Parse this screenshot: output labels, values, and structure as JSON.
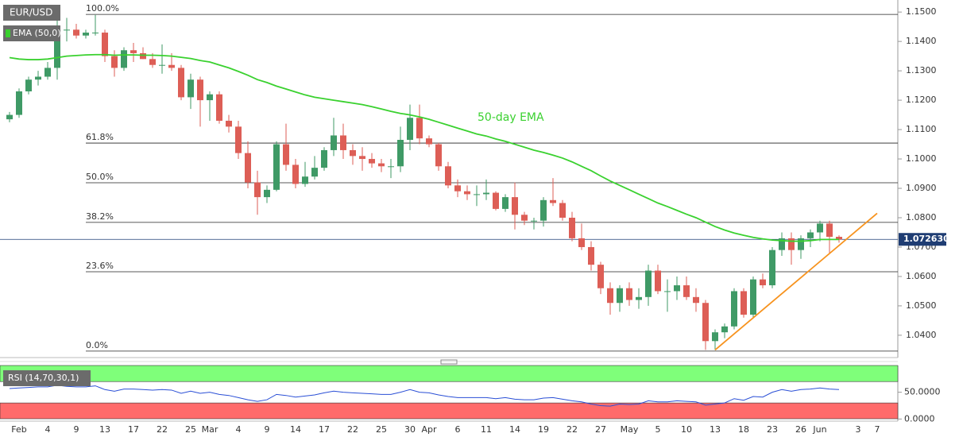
{
  "chart_data": {
    "type": "candlestick",
    "title": "EUR/USD",
    "categories": [
      null,
      "Feb",
      null,
      null,
      "4",
      null,
      null,
      "9",
      null,
      null,
      "13",
      null,
      null,
      "17",
      null,
      null,
      "22",
      null,
      null,
      "25",
      null,
      "Mar",
      null,
      null,
      "4",
      null,
      null,
      "9",
      null,
      null,
      "14",
      null,
      null,
      "17",
      null,
      null,
      "22",
      null,
      null,
      "25",
      null,
      null,
      "30",
      null,
      "Apr",
      null,
      null,
      "6",
      null,
      null,
      "11",
      null,
      null,
      "14",
      null,
      null,
      "19",
      null,
      null,
      "22",
      null,
      null,
      "27",
      null,
      null,
      "May",
      null,
      null,
      "5",
      null,
      null,
      "10",
      null,
      null,
      "13",
      null,
      null,
      "18",
      null,
      null,
      "23",
      null,
      null,
      "26",
      null,
      "Jun",
      null,
      null,
      null,
      "3",
      null,
      "7"
    ],
    "open": [
      1.1135,
      1.115,
      1.123,
      1.127,
      1.128,
      1.131,
      1.144,
      1.144,
      1.142,
      1.143,
      1.143,
      1.135,
      1.131,
      1.137,
      1.136,
      1.134,
      1.132,
      1.132,
      1.131,
      1.121,
      1.127,
      1.12,
      1.122,
      1.113,
      1.111,
      1.102,
      1.092,
      1.087,
      1.0895,
      1.105,
      1.098,
      1.0915,
      1.094,
      1.097,
      1.103,
      1.108,
      1.103,
      1.101,
      1.1,
      1.0985,
      1.0975,
      1.0975,
      1.1065,
      1.114,
      1.107,
      1.105,
      1.0975,
      1.091,
      1.089,
      1.088,
      1.088,
      1.0885,
      1.083,
      1.087,
      1.081,
      1.079,
      1.079,
      1.086,
      1.085,
      1.08,
      1.073,
      1.07,
      1.064,
      1.056,
      1.051,
      1.056,
      1.052,
      1.053,
      1.062,
      1.055,
      1.055,
      1.057,
      1.053,
      1.051,
      1.038,
      1.041,
      1.043,
      1.055,
      1.047,
      1.059,
      1.057,
      1.069,
      1.073,
      1.069,
      1.073,
      1.075,
      1.078,
      1.0735,
      null,
      null,
      null,
      null
    ],
    "high": [
      1.116,
      1.124,
      1.128,
      1.13,
      1.133,
      1.148,
      1.148,
      1.146,
      1.144,
      1.149,
      1.144,
      1.137,
      1.138,
      1.1395,
      1.138,
      1.136,
      1.139,
      1.136,
      1.132,
      1.129,
      1.128,
      1.123,
      1.123,
      1.115,
      1.113,
      1.106,
      1.096,
      1.091,
      1.106,
      1.112,
      1.1,
      1.099,
      1.101,
      1.104,
      1.114,
      1.112,
      1.105,
      1.104,
      1.102,
      1.1,
      1.1,
      1.111,
      1.1185,
      1.1185,
      1.108,
      1.1055,
      1.099,
      1.093,
      1.091,
      1.091,
      1.093,
      1.089,
      1.088,
      1.092,
      1.082,
      1.08,
      1.087,
      1.0935,
      1.086,
      1.082,
      1.078,
      1.072,
      1.065,
      1.058,
      1.057,
      1.058,
      1.056,
      1.064,
      1.064,
      1.059,
      1.06,
      1.06,
      1.056,
      1.052,
      1.042,
      1.044,
      1.056,
      1.056,
      1.06,
      1.061,
      1.07,
      1.075,
      1.075,
      1.074,
      1.076,
      1.079,
      1.079,
      1.074,
      null,
      null,
      null,
      null
    ],
    "low": [
      1.1125,
      1.114,
      1.122,
      1.125,
      1.127,
      1.127,
      1.14,
      1.141,
      1.141,
      1.142,
      1.133,
      1.128,
      1.13,
      1.133,
      1.134,
      1.131,
      1.129,
      1.13,
      1.12,
      1.117,
      1.111,
      1.113,
      1.112,
      1.109,
      1.1,
      1.09,
      1.081,
      1.085,
      1.089,
      1.096,
      1.09,
      1.0905,
      1.093,
      1.096,
      1.101,
      1.1,
      1.098,
      1.096,
      1.097,
      1.0955,
      1.0935,
      1.0955,
      1.103,
      1.105,
      1.104,
      1.096,
      1.09,
      1.087,
      1.086,
      1.084,
      1.086,
      1.0825,
      1.082,
      1.076,
      1.0775,
      1.076,
      1.077,
      1.084,
      1.079,
      1.072,
      1.069,
      1.062,
      1.054,
      1.047,
      1.048,
      1.05,
      1.049,
      1.05,
      1.054,
      1.048,
      1.052,
      1.052,
      1.048,
      1.035,
      1.035,
      1.039,
      1.042,
      1.046,
      1.046,
      1.056,
      1.056,
      1.067,
      1.064,
      1.066,
      1.07,
      1.072,
      1.068,
      1.0715,
      null,
      null,
      null,
      null
    ],
    "close": [
      1.115,
      1.123,
      1.127,
      1.128,
      1.131,
      1.144,
      1.144,
      1.142,
      1.143,
      1.143,
      1.135,
      1.131,
      1.137,
      1.136,
      1.134,
      1.132,
      1.132,
      1.131,
      1.121,
      1.127,
      1.12,
      1.122,
      1.113,
      1.111,
      1.102,
      1.092,
      1.087,
      1.0895,
      1.105,
      1.098,
      1.0915,
      1.094,
      1.097,
      1.103,
      1.108,
      1.103,
      1.101,
      1.1,
      1.0985,
      1.0975,
      1.0975,
      1.1065,
      1.114,
      1.107,
      1.105,
      1.0975,
      1.091,
      1.089,
      1.088,
      1.088,
      1.0885,
      1.083,
      1.087,
      1.081,
      1.079,
      1.079,
      1.086,
      1.085,
      1.08,
      1.073,
      1.07,
      1.064,
      1.056,
      1.051,
      1.056,
      1.052,
      1.053,
      1.062,
      1.055,
      1.055,
      1.057,
      1.053,
      1.051,
      1.038,
      1.041,
      1.043,
      1.055,
      1.047,
      1.059,
      1.057,
      1.069,
      1.073,
      1.069,
      1.073,
      1.075,
      1.078,
      1.0735,
      1.0726,
      null,
      null,
      null,
      null
    ],
    "up_color": "#3f9a66",
    "down_color": "#dd5e56",
    "ylim": [
      1.0324,
      1.1541
    ],
    "yticks": [
      {
        "value": 1.04,
        "label": "1.0400"
      },
      {
        "value": 1.05,
        "label": "1.0500"
      },
      {
        "value": 1.06,
        "label": "1.0600"
      },
      {
        "value": 1.07,
        "label": "1.0700"
      },
      {
        "value": 1.08,
        "label": "1.0800"
      },
      {
        "value": 1.09,
        "label": "1.0900"
      },
      {
        "value": 1.1,
        "label": "1.1000"
      },
      {
        "value": 1.11,
        "label": "1.1100"
      },
      {
        "value": 1.12,
        "label": "1.1200"
      },
      {
        "value": 1.13,
        "label": "1.1300"
      },
      {
        "value": 1.14,
        "label": "1.1400"
      },
      {
        "value": 1.15,
        "label": "1.1500"
      }
    ],
    "ema": {
      "name": "EMA (50,0)",
      "annotation": "50-day EMA",
      "color": "#3ad12f",
      "values": [
        1.1345,
        1.134,
        1.1338,
        1.1338,
        1.134,
        1.1345,
        1.135,
        1.1352,
        1.1354,
        1.1355,
        1.1355,
        1.1353,
        1.1354,
        1.1354,
        1.1353,
        1.1353,
        1.1352,
        1.135,
        1.1346,
        1.1342,
        1.1335,
        1.133,
        1.132,
        1.131,
        1.1298,
        1.1285,
        1.127,
        1.126,
        1.1248,
        1.1238,
        1.1228,
        1.1218,
        1.121,
        1.1205,
        1.12,
        1.1195,
        1.119,
        1.1185,
        1.1178,
        1.117,
        1.1162,
        1.1155,
        1.115,
        1.1143,
        1.1135,
        1.1125,
        1.1115,
        1.1105,
        1.1095,
        1.1085,
        1.1078,
        1.1068,
        1.106,
        1.105,
        1.104,
        1.103,
        1.1022,
        1.1013,
        1.1003,
        1.099,
        1.0975,
        1.096,
        1.0942,
        1.0925,
        1.091,
        1.0895,
        1.088,
        1.0865,
        1.085,
        1.0838,
        1.0825,
        1.0812,
        1.08,
        1.0785,
        1.077,
        1.0758,
        1.0748,
        1.074,
        1.0733,
        1.0728,
        1.0724,
        1.0722,
        1.072,
        1.072,
        1.0722,
        1.0726,
        1.0726,
        1.0726,
        null,
        null,
        null,
        null
      ]
    },
    "fibonacci": [
      {
        "label": "100.0%",
        "value": 1.1492
      },
      {
        "label": "61.8%",
        "value": 1.1054
      },
      {
        "label": "50.0%",
        "value": 1.0919
      },
      {
        "label": "38.2%",
        "value": 1.0784
      },
      {
        "label": "23.6%",
        "value": 1.0616
      },
      {
        "label": "0.0%",
        "value": 1.0346
      }
    ],
    "current_price": {
      "value": 1.07263,
      "label": "1.072630",
      "color": "#1f3d73"
    },
    "trendline": {
      "x": [
        74,
        91
      ],
      "y": [
        1.035,
        1.0815
      ],
      "color": "#f7931e"
    },
    "rsi": {
      "name": "RSI (14,70,30,1)",
      "color": "#2a4fd6",
      "ylim": [
        -4,
        100
      ],
      "yticks": [
        {
          "value": 50,
          "label": "50.0000"
        },
        {
          "value": 0,
          "label": "0.0000"
        }
      ],
      "overbought": 70,
      "oversold": 30,
      "values": [
        57,
        58,
        59,
        60,
        60,
        63,
        61,
        60,
        60,
        62,
        55,
        52,
        56,
        56,
        55,
        54,
        55,
        54,
        48,
        52,
        48,
        50,
        46,
        44,
        40,
        36,
        33,
        36,
        46,
        44,
        41,
        43,
        45,
        49,
        52,
        50,
        49,
        48,
        47,
        46,
        46,
        50,
        55,
        50,
        49,
        45,
        42,
        40,
        40,
        40,
        40,
        38,
        40,
        37,
        36,
        36,
        39,
        40,
        37,
        34,
        32,
        28,
        25,
        24,
        28,
        27,
        28,
        34,
        32,
        32,
        34,
        33,
        32,
        26,
        28,
        30,
        38,
        35,
        42,
        41,
        50,
        55,
        52,
        55,
        56,
        58,
        56,
        55,
        null,
        null,
        null,
        null
      ]
    }
  }
}
